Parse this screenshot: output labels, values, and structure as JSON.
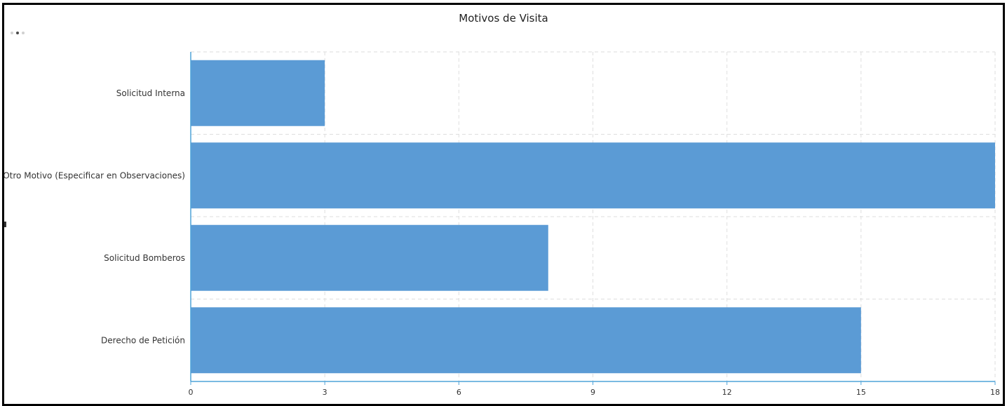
{
  "chart_data": {
    "type": "bar",
    "orientation": "horizontal",
    "title": "Motivos de Visita",
    "categories": [
      "Solicitud Interna",
      "Otro Motivo (Especificar en Observaciones)",
      "Solicitud Bomberos",
      "Derecho de Petición"
    ],
    "values": [
      3,
      18,
      8,
      15
    ],
    "xlim": [
      0,
      18
    ],
    "xticks": [
      0,
      3,
      6,
      9,
      12,
      15,
      18
    ],
    "xlabel": "",
    "ylabel": "",
    "grid": true,
    "color": "#5b9bd5"
  }
}
